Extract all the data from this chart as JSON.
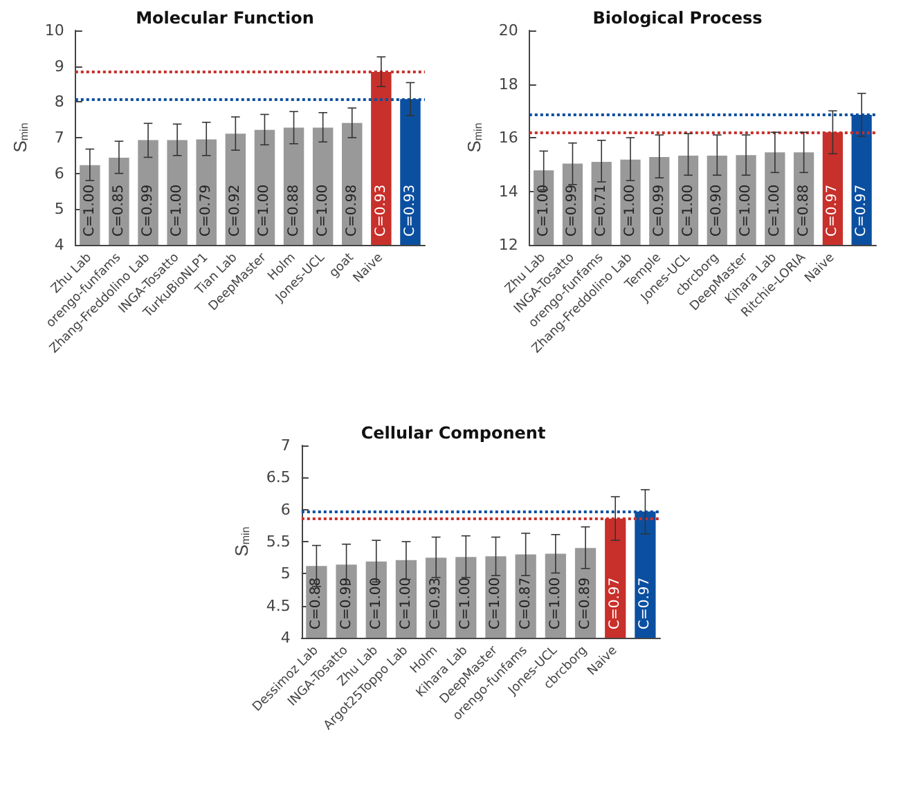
{
  "chart_data": [
    {
      "type": "bar",
      "title": "Molecular Function",
      "ylabel": "S$_{min}$",
      "categories": [
        "Zhu Lab",
        "orengo-funfams",
        "Zhang-Freddolino Lab",
        "INGA-Tosatto",
        "TurkuBioNLP1",
        "Tian Lab",
        "DeepMaster",
        "Holm",
        "Jones-UCL",
        "goat",
        "Naive",
        null
      ],
      "values": [
        6.23,
        6.44,
        6.93,
        6.93,
        6.95,
        7.11,
        7.22,
        7.28,
        7.28,
        7.41,
        8.84,
        8.08
      ],
      "colors": [
        "#999999",
        "#999999",
        "#999999",
        "#999999",
        "#999999",
        "#999999",
        "#999999",
        "#999999",
        "#999999",
        "#999999",
        "#c8302b",
        "#0b4fa0"
      ],
      "errors": [
        [
          5.8,
          6.68
        ],
        [
          6.0,
          6.9
        ],
        [
          6.45,
          7.4
        ],
        [
          6.5,
          7.38
        ],
        [
          6.5,
          7.43
        ],
        [
          6.65,
          7.58
        ],
        [
          6.8,
          7.65
        ],
        [
          6.83,
          7.73
        ],
        [
          6.88,
          7.7
        ],
        [
          7.0,
          7.83
        ],
        [
          8.43,
          9.26
        ],
        [
          7.62,
          8.54
        ]
      ],
      "annotations": [
        "C=1.00",
        "C=0.85",
        "C=0.99",
        "C=1.00",
        "C=0.79",
        "C=0.92",
        "C=1.00",
        "C=0.88",
        "C=1.00",
        "C=0.98",
        "C=0.93",
        "C=0.93"
      ],
      "ylim": [
        4,
        10
      ],
      "yticks": [
        4,
        5,
        6,
        7,
        8,
        9,
        10
      ],
      "grid": false,
      "ref_lines": [
        {
          "axis": "y",
          "value": 8.84,
          "color": "#c8302b",
          "line_style": "dotted"
        },
        {
          "axis": "y",
          "value": 8.08,
          "color": "#0b4fa0",
          "line_style": "dotted"
        }
      ]
    },
    {
      "type": "bar",
      "title": "Biological Process",
      "ylabel": "S$_{min}$",
      "categories": [
        "Zhu Lab",
        "INGA-Tosatto",
        "orengo-funfams",
        "Zhang-Freddolino Lab",
        "Temple",
        "Jones-UCL",
        "cbrcborg",
        "DeepMaster",
        "Kihara Lab",
        "Ritchie-LORIA",
        "Naive",
        null
      ],
      "values": [
        14.78,
        15.03,
        15.1,
        15.18,
        15.28,
        15.33,
        15.33,
        15.35,
        15.45,
        15.45,
        16.2,
        16.85
      ],
      "colors": [
        "#999999",
        "#999999",
        "#999999",
        "#999999",
        "#999999",
        "#999999",
        "#999999",
        "#999999",
        "#999999",
        "#999999",
        "#c8302b",
        "#0b4fa0"
      ],
      "errors": [
        [
          14.05,
          15.5
        ],
        [
          14.25,
          15.8
        ],
        [
          14.35,
          15.9
        ],
        [
          14.4,
          16.0
        ],
        [
          14.5,
          16.1
        ],
        [
          14.6,
          16.15
        ],
        [
          14.6,
          16.1
        ],
        [
          14.6,
          16.1
        ],
        [
          14.7,
          16.2
        ],
        [
          14.7,
          16.2
        ],
        [
          15.4,
          17.0
        ],
        [
          16.05,
          17.65
        ]
      ],
      "annotations": [
        "C=1.00",
        "C=0.99",
        "C=0.71",
        "C=1.00",
        "C=0.99",
        "C=1.00",
        "C=0.90",
        "C=1.00",
        "C=1.00",
        "C=0.88",
        "C=0.97",
        "C=0.97"
      ],
      "ylim": [
        12,
        20
      ],
      "yticks": [
        12,
        14,
        16,
        18,
        20
      ],
      "grid": false,
      "ref_lines": [
        {
          "axis": "y",
          "value": 16.85,
          "color": "#0b4fa0",
          "line_style": "dotted"
        },
        {
          "axis": "y",
          "value": 16.2,
          "color": "#c8302b",
          "line_style": "dotted"
        }
      ]
    },
    {
      "type": "bar",
      "title": "Cellular Component",
      "ylabel": "S$_{min}$",
      "categories": [
        "Dessimoz Lab",
        "INGA-Tosatto",
        "Zhu Lab",
        "Argot25Toppo Lab",
        "Holm",
        "Kihara Lab",
        "DeepMaster",
        "orengo-funfams",
        "Jones-UCL",
        "cbrcborg",
        "Naive",
        null
      ],
      "values": [
        5.12,
        5.14,
        5.19,
        5.21,
        5.25,
        5.26,
        5.27,
        5.3,
        5.31,
        5.4,
        5.86,
        5.97
      ],
      "colors": [
        "#999999",
        "#999999",
        "#999999",
        "#999999",
        "#999999",
        "#999999",
        "#999999",
        "#999999",
        "#999999",
        "#999999",
        "#c8302b",
        "#0b4fa0"
      ],
      "errors": [
        [
          4.8,
          5.44
        ],
        [
          4.83,
          5.46
        ],
        [
          4.87,
          5.52
        ],
        [
          4.91,
          5.5
        ],
        [
          4.94,
          5.57
        ],
        [
          4.94,
          5.59
        ],
        [
          4.97,
          5.57
        ],
        [
          4.97,
          5.63
        ],
        [
          5.01,
          5.61
        ],
        [
          5.08,
          5.73
        ],
        [
          5.52,
          6.2
        ],
        [
          5.62,
          6.31
        ]
      ],
      "annotations": [
        "C=0.88",
        "C=0.99",
        "C=1.00",
        "C=1.00",
        "C=0.93",
        "C=1.00",
        "C=1.00",
        "C=0.87",
        "C=1.00",
        "C=0.89",
        "C=0.97",
        "C=0.97"
      ],
      "ylim": [
        4,
        7
      ],
      "yticks": [
        4,
        4.5,
        5,
        5.5,
        6,
        6.5,
        7
      ],
      "grid": false,
      "ref_lines": [
        {
          "axis": "y",
          "value": 5.97,
          "color": "#0b4fa0",
          "line_style": "dotted"
        },
        {
          "axis": "y",
          "value": 5.86,
          "color": "#c8302b",
          "line_style": "dotted"
        }
      ]
    }
  ]
}
